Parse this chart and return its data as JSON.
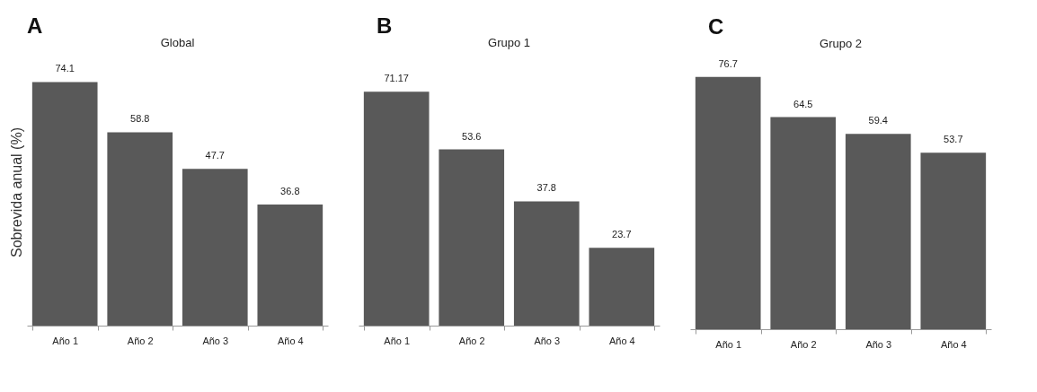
{
  "chart_data": [
    {
      "type": "bar",
      "title": "A",
      "subtitle": "Global",
      "ylabel": "Sobrevida anual (%)",
      "categories": [
        "Año 1",
        "Año 2",
        "Año 3",
        "Año 4"
      ],
      "values": [
        74.1,
        58.8,
        47.7,
        36.8
      ],
      "color": "#595959",
      "data_labels": true,
      "tick_labels": "x"
    },
    {
      "type": "bar",
      "title": "B",
      "subtitle": "Grupo 1",
      "categories": [
        "Año 1",
        "Año 2",
        "Año 3",
        "Año 4"
      ],
      "values": [
        71.17,
        53.6,
        37.8,
        23.7
      ],
      "color": "#595959",
      "data_labels": true,
      "tick_labels": "x"
    },
    {
      "type": "bar",
      "title": "C",
      "subtitle": "Grupo 2",
      "categories": [
        "Año 1",
        "Año 2",
        "Año 3",
        "Año 4"
      ],
      "values": [
        76.7,
        64.5,
        59.4,
        53.7
      ],
      "color": "#595959",
      "data_labels": true,
      "tick_labels": "x"
    }
  ]
}
